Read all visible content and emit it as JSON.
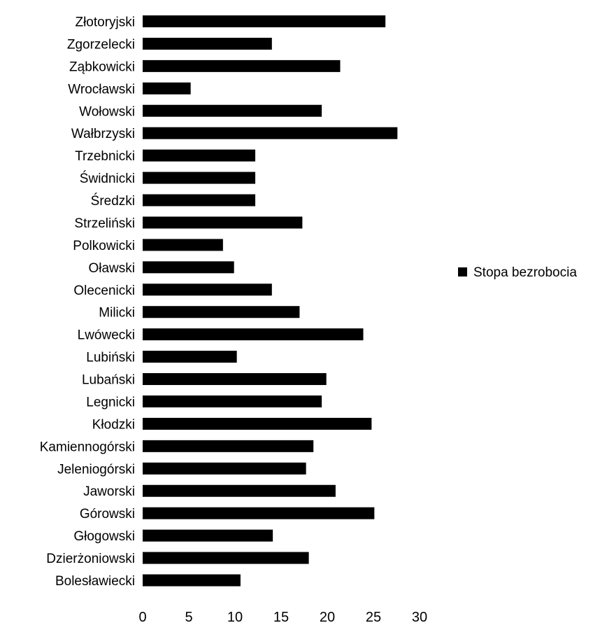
{
  "chart_data": {
    "type": "bar",
    "orientation": "horizontal",
    "categories": [
      "Złotoryjski",
      "Zgorzelecki",
      "Ząbkowicki",
      "Wrocławski",
      "Wołowski",
      "Wałbrzyski",
      "Trzebnicki",
      "Świdnicki",
      "Średzki",
      "Strzeliński",
      "Polkowicki",
      "Oławski",
      "Olecenicki",
      "Milicki",
      "Lwówecki",
      "Lubiński",
      "Lubański",
      "Legnicki",
      "Kłodzki",
      "Kamiennogórski",
      "Jeleniogórski",
      "Jaworski",
      "Górowski",
      "Głogowski",
      "Dzierżoniowski",
      "Bolesławiecki"
    ],
    "series": [
      {
        "name": "Stopa bezrobocia",
        "color": "#000000",
        "values": [
          26.3,
          14.0,
          21.4,
          5.2,
          19.4,
          27.6,
          12.2,
          12.2,
          12.2,
          17.3,
          8.7,
          9.9,
          14.0,
          17.0,
          23.9,
          10.2,
          19.9,
          19.4,
          24.8,
          18.5,
          17.7,
          20.9,
          25.1,
          14.1,
          18.0,
          10.6
        ]
      }
    ],
    "xlim": [
      0,
      30
    ],
    "xticks": [
      "0",
      "5",
      "10",
      "15",
      "20",
      "25",
      "30"
    ],
    "grid": false,
    "legend": "right",
    "title": "",
    "xlabel": "",
    "ylabel": ""
  }
}
